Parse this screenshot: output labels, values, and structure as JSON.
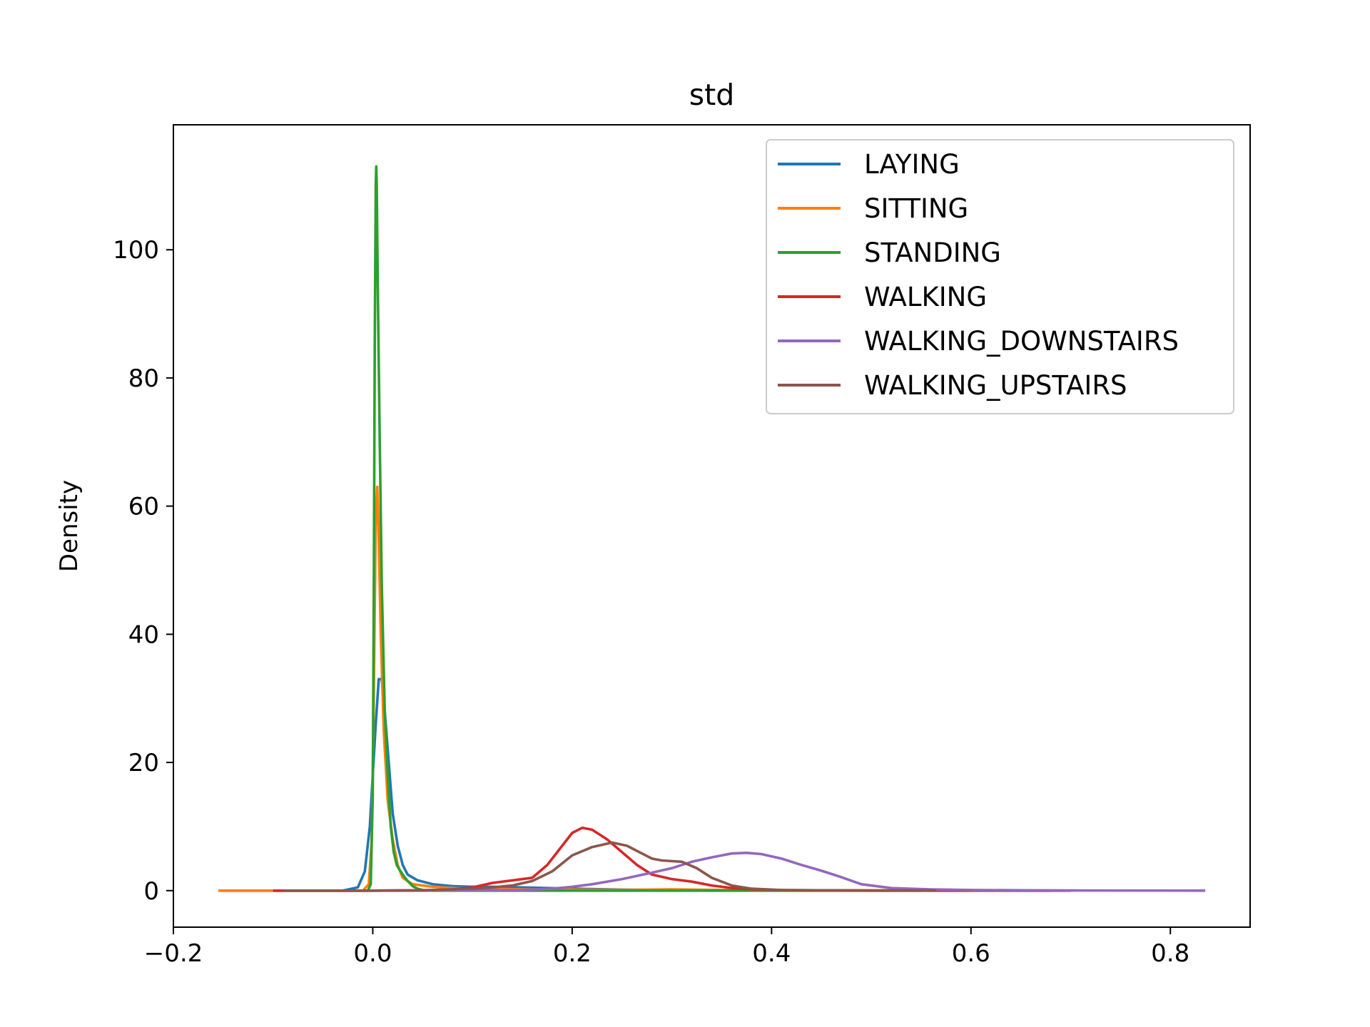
{
  "chart_data": {
    "type": "line",
    "title": "std",
    "xlabel": "",
    "ylabel": "Density",
    "xlim": [
      -0.2,
      0.88
    ],
    "ylim": [
      -5.7,
      119.5
    ],
    "xticks": [
      -0.2,
      0.0,
      0.2,
      0.4,
      0.6,
      0.8
    ],
    "xtick_labels": [
      "−0.2",
      "0.0",
      "0.2",
      "0.4",
      "0.6",
      "0.8"
    ],
    "yticks": [
      0,
      20,
      40,
      60,
      80,
      100
    ],
    "ytick_labels": [
      "0",
      "20",
      "40",
      "60",
      "80",
      "100"
    ],
    "grid": false,
    "legend_position": "top-right",
    "series": [
      {
        "name": "LAYING",
        "color": "#1f77b4",
        "points": [
          [
            -0.15,
            0
          ],
          [
            -0.03,
            0
          ],
          [
            -0.015,
            0.5
          ],
          [
            -0.008,
            3
          ],
          [
            -0.003,
            10
          ],
          [
            0.0,
            18
          ],
          [
            0.003,
            26
          ],
          [
            0.006,
            33
          ],
          [
            0.009,
            33
          ],
          [
            0.012,
            28
          ],
          [
            0.016,
            20
          ],
          [
            0.02,
            12
          ],
          [
            0.025,
            7
          ],
          [
            0.03,
            4
          ],
          [
            0.035,
            2.5
          ],
          [
            0.045,
            1.6
          ],
          [
            0.06,
            1.0
          ],
          [
            0.08,
            0.7
          ],
          [
            0.1,
            0.6
          ],
          [
            0.12,
            0.6
          ],
          [
            0.15,
            0.5
          ],
          [
            0.2,
            0.3
          ],
          [
            0.25,
            0.15
          ],
          [
            0.3,
            0.1
          ],
          [
            0.4,
            0.05
          ],
          [
            0.5,
            0.02
          ],
          [
            0.68,
            0
          ]
        ]
      },
      {
        "name": "SITTING",
        "color": "#ff7f0e",
        "points": [
          [
            -0.155,
            0
          ],
          [
            -0.01,
            0
          ],
          [
            -0.004,
            1
          ],
          [
            -0.001,
            8
          ],
          [
            0.001,
            30
          ],
          [
            0.003,
            58
          ],
          [
            0.0045,
            63
          ],
          [
            0.006,
            55
          ],
          [
            0.008,
            40
          ],
          [
            0.011,
            25
          ],
          [
            0.015,
            14
          ],
          [
            0.02,
            8
          ],
          [
            0.025,
            4
          ],
          [
            0.03,
            2
          ],
          [
            0.04,
            1
          ],
          [
            0.06,
            0.6
          ],
          [
            0.08,
            0.4
          ],
          [
            0.1,
            0.3
          ],
          [
            0.15,
            0.2
          ],
          [
            0.2,
            0.15
          ],
          [
            0.25,
            0.1
          ],
          [
            0.3,
            0.2
          ],
          [
            0.35,
            0.1
          ],
          [
            0.45,
            0.05
          ],
          [
            0.6,
            0
          ]
        ]
      },
      {
        "name": "STANDING",
        "color": "#2ca02c",
        "points": [
          [
            -0.09,
            0
          ],
          [
            -0.005,
            0
          ],
          [
            -0.002,
            1
          ],
          [
            0.0,
            15
          ],
          [
            0.001,
            45
          ],
          [
            0.002,
            85
          ],
          [
            0.003,
            110
          ],
          [
            0.0035,
            113
          ],
          [
            0.004,
            110
          ],
          [
            0.005,
            95
          ],
          [
            0.007,
            70
          ],
          [
            0.009,
            48
          ],
          [
            0.012,
            28
          ],
          [
            0.015,
            18
          ],
          [
            0.018,
            10
          ],
          [
            0.021,
            6
          ],
          [
            0.024,
            4
          ],
          [
            0.027,
            3.2
          ],
          [
            0.03,
            2.5
          ],
          [
            0.035,
            1.5
          ],
          [
            0.04,
            0.7
          ],
          [
            0.045,
            0.3
          ],
          [
            0.05,
            0.1
          ],
          [
            0.06,
            0
          ],
          [
            0.3,
            0
          ],
          [
            0.55,
            0
          ]
        ]
      },
      {
        "name": "WALKING",
        "color": "#d62728",
        "points": [
          [
            -0.1,
            0
          ],
          [
            0.0,
            0
          ],
          [
            0.05,
            0.05
          ],
          [
            0.08,
            0.2
          ],
          [
            0.1,
            0.5
          ],
          [
            0.12,
            1.2
          ],
          [
            0.14,
            1.6
          ],
          [
            0.16,
            2.0
          ],
          [
            0.175,
            4
          ],
          [
            0.19,
            7
          ],
          [
            0.2,
            9
          ],
          [
            0.21,
            9.8
          ],
          [
            0.22,
            9.5
          ],
          [
            0.235,
            8
          ],
          [
            0.25,
            6
          ],
          [
            0.265,
            4
          ],
          [
            0.28,
            2.5
          ],
          [
            0.3,
            1.8
          ],
          [
            0.32,
            1.4
          ],
          [
            0.34,
            0.8
          ],
          [
            0.36,
            0.4
          ],
          [
            0.38,
            0.2
          ],
          [
            0.42,
            0.05
          ],
          [
            0.5,
            0
          ],
          [
            0.7,
            0
          ]
        ]
      },
      {
        "name": "WALKING_DOWNSTAIRS",
        "color": "#9467bd",
        "points": [
          [
            -0.03,
            0
          ],
          [
            0.05,
            0
          ],
          [
            0.1,
            0.05
          ],
          [
            0.15,
            0.1
          ],
          [
            0.18,
            0.3
          ],
          [
            0.2,
            0.6
          ],
          [
            0.22,
            1.0
          ],
          [
            0.25,
            1.8
          ],
          [
            0.28,
            2.8
          ],
          [
            0.3,
            3.5
          ],
          [
            0.32,
            4.5
          ],
          [
            0.34,
            5.2
          ],
          [
            0.36,
            5.8
          ],
          [
            0.375,
            5.9
          ],
          [
            0.39,
            5.7
          ],
          [
            0.41,
            5.0
          ],
          [
            0.43,
            4.0
          ],
          [
            0.45,
            3.1
          ],
          [
            0.47,
            2.1
          ],
          [
            0.49,
            1.0
          ],
          [
            0.52,
            0.4
          ],
          [
            0.56,
            0.2
          ],
          [
            0.6,
            0.1
          ],
          [
            0.65,
            0.05
          ],
          [
            0.7,
            0.02
          ],
          [
            0.835,
            0
          ]
        ]
      },
      {
        "name": "WALKING_UPSTAIRS",
        "color": "#8c564b",
        "points": [
          [
            -0.09,
            0
          ],
          [
            0.0,
            0
          ],
          [
            0.05,
            0.05
          ],
          [
            0.08,
            0.2
          ],
          [
            0.1,
            0.3
          ],
          [
            0.12,
            0.5
          ],
          [
            0.14,
            0.8
          ],
          [
            0.16,
            1.5
          ],
          [
            0.18,
            3
          ],
          [
            0.2,
            5.5
          ],
          [
            0.22,
            6.8
          ],
          [
            0.24,
            7.5
          ],
          [
            0.255,
            7.0
          ],
          [
            0.27,
            5.8
          ],
          [
            0.28,
            5.0
          ],
          [
            0.29,
            4.7
          ],
          [
            0.31,
            4.5
          ],
          [
            0.325,
            3.5
          ],
          [
            0.34,
            2.0
          ],
          [
            0.36,
            0.8
          ],
          [
            0.38,
            0.3
          ],
          [
            0.41,
            0.1
          ],
          [
            0.45,
            0.05
          ],
          [
            0.5,
            0.02
          ],
          [
            0.565,
            0
          ]
        ]
      }
    ]
  }
}
